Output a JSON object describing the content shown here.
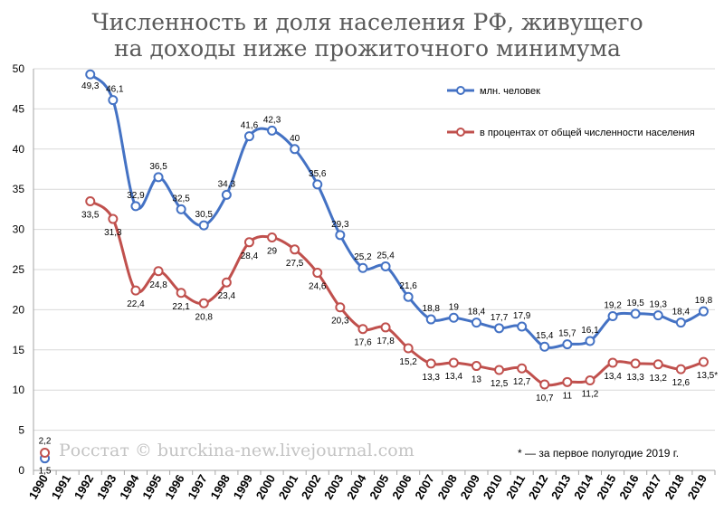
{
  "title_lines": [
    "Численность и доля населения РФ, живущего",
    "на доходы ниже прожиточного минимума"
  ],
  "watermark": "Росстат © burckina-new.livejournal.com",
  "footnote": "* — за первое полугодие 2019 г.",
  "colors": {
    "series1": "#4472c4",
    "series2": "#c0504d",
    "grid": "#d9d9d9"
  },
  "chart_data": {
    "type": "line",
    "title": "Численность и доля населения РФ, живущего на доходы ниже прожиточного минимума",
    "x": [
      "1990",
      "1991",
      "1992",
      "1993",
      "1994",
      "1995",
      "1996",
      "1997",
      "1998",
      "1999",
      "2000",
      "2001",
      "2002",
      "2003",
      "2004",
      "2005",
      "2006",
      "2007",
      "2008",
      "2009",
      "2010",
      "2011",
      "2012",
      "2013",
      "2014",
      "2015",
      "2016",
      "2017",
      "2018",
      "2019"
    ],
    "yticks": [
      0,
      5,
      10,
      15,
      20,
      25,
      30,
      35,
      40,
      45,
      50
    ],
    "ylim": [
      0,
      50
    ],
    "grid": true,
    "legend_position": "top-right",
    "series": [
      {
        "name": "млн. человек",
        "color": "#4472c4",
        "values": [
          1.5,
          null,
          49.3,
          46.1,
          32.9,
          36.5,
          32.5,
          30.5,
          34.3,
          41.6,
          42.3,
          40,
          35.6,
          29.3,
          25.2,
          25.4,
          21.6,
          18.8,
          19,
          18.4,
          17.7,
          17.9,
          15.4,
          15.7,
          16.1,
          19.2,
          19.5,
          19.3,
          18.4,
          19.8
        ],
        "labels": [
          "1,5",
          "",
          "49,3",
          "46,1",
          "32,9",
          "36,5",
          "32,5",
          "30,5",
          "34,3",
          "41,6",
          "42,3",
          "40",
          "35,6",
          "29,3",
          "25,2",
          "25,4",
          "21,6",
          "18,8",
          "19",
          "18,4",
          "17,7",
          "17,9",
          "15,4",
          "15,7",
          "16,1",
          "19,2",
          "19,5",
          "19,3",
          "18,4",
          "19,8"
        ]
      },
      {
        "name": "в процентах от общей численности населения",
        "color": "#c0504d",
        "values": [
          2.2,
          null,
          33.5,
          31.3,
          22.4,
          24.8,
          22.1,
          20.8,
          23.4,
          28.4,
          29,
          27.5,
          24.6,
          20.3,
          17.6,
          17.8,
          15.2,
          13.3,
          13.4,
          13,
          12.5,
          12.7,
          10.7,
          11,
          11.2,
          13.4,
          13.3,
          13.2,
          12.6,
          13.5
        ],
        "labels": [
          "2,2",
          "",
          "33,5",
          "31,3",
          "22,4",
          "24,8",
          "22,1",
          "20,8",
          "23,4",
          "28,4",
          "29",
          "27,5",
          "24,6",
          "20,3",
          "17,6",
          "17,8",
          "15,2",
          "13,3",
          "13,4",
          "13",
          "12,5",
          "12,7",
          "10,7",
          "11",
          "11,2",
          "13,4",
          "13,3",
          "13,2",
          "12,6",
          "13,5*"
        ]
      }
    ]
  }
}
